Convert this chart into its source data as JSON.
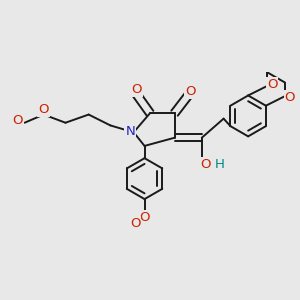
{
  "bg_color": "#e8e8e8",
  "bond_color": "#1a1a1a",
  "bond_lw": 1.4,
  "atom_colors": {
    "O": "#cc2200",
    "N": "#2222cc",
    "H": "#008888"
  },
  "font_size": 8.5,
  "fig_size": [
    3.0,
    3.0
  ],
  "dpi": 100
}
